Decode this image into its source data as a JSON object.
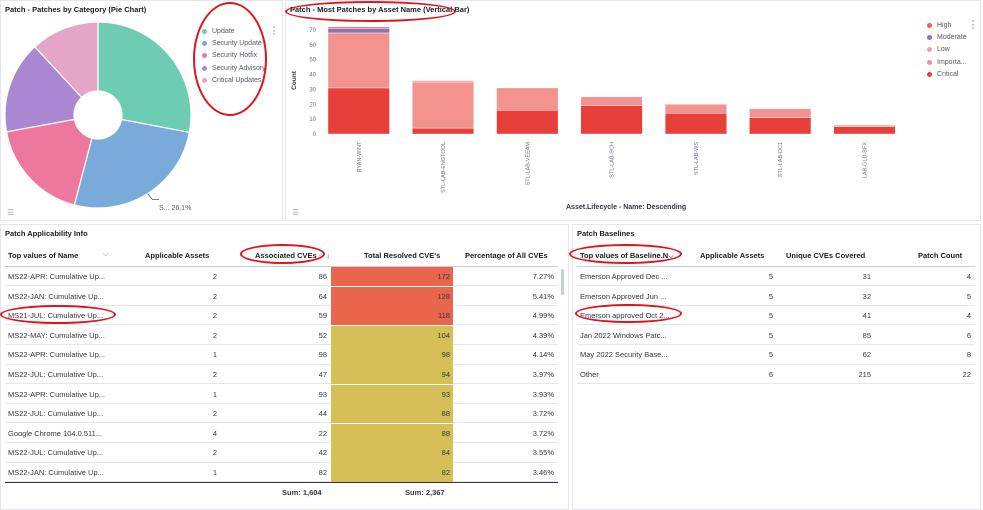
{
  "pie_panel": {
    "title": "Patch - Patches by Category (Pie Chart)",
    "callout": "S... 26.1%",
    "legend": [
      {
        "label": "Update",
        "color": "#6dccb1"
      },
      {
        "label": "Security Update",
        "color": "#79aad9"
      },
      {
        "label": "Security Hotfix",
        "color": "#ee789d"
      },
      {
        "label": "Security Advisory",
        "color": "#a987d1"
      },
      {
        "label": "Critical Updates",
        "color": "#e4a6c7"
      }
    ]
  },
  "bar_panel": {
    "title": "Patch - Most Patches by Asset Name (Vertical Bar)",
    "legend": [
      {
        "label": "High",
        "color": "#e7664c"
      },
      {
        "label": "Moderate",
        "color": "#9170b8"
      },
      {
        "label": "Low",
        "color": "#f5a0a0"
      },
      {
        "label": "Importa...",
        "color": "#f3938f"
      },
      {
        "label": "Critical",
        "color": "#e7403a"
      }
    ]
  },
  "chart_data": [
    {
      "type": "pie",
      "title": "Patch - Patches by Category (Pie Chart)",
      "donut": true,
      "categories": [
        "Update",
        "Security Update",
        "Security Hotfix",
        "Security Advisory",
        "Critical Updates"
      ],
      "values": [
        28,
        26.1,
        18,
        16,
        11.9
      ],
      "colors": [
        "#6dccb1",
        "#79aad9",
        "#ee789d",
        "#a987d1",
        "#e4a6c7"
      ],
      "legend_position": "right"
    },
    {
      "type": "bar",
      "title": "Patch - Most Patches by Asset Name (Vertical Bar)",
      "stacked": true,
      "categories": [
        "RYAN-WIN7",
        "STL-LAB-ENGTOOL",
        "STL-LAB-VEEAM",
        "STL-LAB-SCH",
        "STL-LAB-WS",
        "STL-LAB-DC1",
        "LAB-GLD-BFX"
      ],
      "series": [
        {
          "name": "Critical",
          "color": "#e7403a",
          "values": [
            31,
            4,
            16,
            19,
            14,
            11,
            5
          ]
        },
        {
          "name": "Importa...",
          "color": "#f3938f",
          "values": [
            37,
            31,
            15,
            6,
            6,
            6,
            1
          ]
        },
        {
          "name": "Low",
          "color": "#f5a0a0",
          "values": [
            0,
            1,
            0,
            0,
            0,
            0,
            0
          ]
        },
        {
          "name": "Moderate",
          "color": "#9170b8",
          "values": [
            3,
            0,
            0,
            0,
            0,
            0,
            0
          ]
        },
        {
          "name": "High",
          "color": "#e7664c",
          "values": [
            1,
            0,
            0,
            0,
            0,
            0,
            0
          ]
        }
      ],
      "ylabel": "Count",
      "xlabel": "Asset.Lifecycle - Name: Descending",
      "yticks": [
        0,
        10,
        20,
        30,
        40,
        50,
        60,
        70
      ],
      "ylim": [
        0,
        72
      ],
      "legend_position": "top-right",
      "grid": false
    }
  ],
  "applicability": {
    "title": "Patch Applicability Info",
    "headers": {
      "name": "Top values of Name",
      "assets": "Applicable Assets",
      "cves": "Associated CVEs",
      "resolved": "Total Resolved CVE's",
      "pct": "Percentage of All CVEs"
    },
    "rows": [
      {
        "name": "MS22-APR: Cumulative Up...",
        "assets": "2",
        "cves": "86",
        "resolved": "172",
        "pct": "7.27%",
        "heat": "#e7664c"
      },
      {
        "name": "MS22-JAN: Cumulative Up...",
        "assets": "2",
        "cves": "64",
        "resolved": "128",
        "pct": "5.41%",
        "heat": "#e7664c"
      },
      {
        "name": "MS21-JUL: Cumulative Up...",
        "assets": "2",
        "cves": "59",
        "resolved": "118",
        "pct": "4.99%",
        "heat": "#e7664c"
      },
      {
        "name": "MS22-MAY: Cumulative Up...",
        "assets": "2",
        "cves": "52",
        "resolved": "104",
        "pct": "4.39%",
        "heat": "#d6bf57"
      },
      {
        "name": "MS22-APR: Cumulative Up...",
        "assets": "1",
        "cves": "98",
        "resolved": "98",
        "pct": "4.14%",
        "heat": "#d6bf57"
      },
      {
        "name": "MS22-JUL: Cumulative Up...",
        "assets": "2",
        "cves": "47",
        "resolved": "94",
        "pct": "3.97%",
        "heat": "#d6bf57"
      },
      {
        "name": "MS22-APR: Cumulative Up...",
        "assets": "1",
        "cves": "93",
        "resolved": "93",
        "pct": "3.93%",
        "heat": "#d6bf57"
      },
      {
        "name": "MS22-JUL: Cumulative Up...",
        "assets": "2",
        "cves": "44",
        "resolved": "88",
        "pct": "3.72%",
        "heat": "#d6bf57"
      },
      {
        "name": "Google Chrome 104.0.511...",
        "assets": "4",
        "cves": "22",
        "resolved": "88",
        "pct": "3.72%",
        "heat": "#d6bf57"
      },
      {
        "name": "MS22-JUL: Cumulative Up...",
        "assets": "2",
        "cves": "42",
        "resolved": "84",
        "pct": "3.55%",
        "heat": "#d6bf57"
      },
      {
        "name": "MS22-JAN: Cumulative Up...",
        "assets": "1",
        "cves": "82",
        "resolved": "82",
        "pct": "3.46%",
        "heat": "#d6bf57"
      }
    ],
    "sum_cves": "Sum: 1,604",
    "sum_resolved": "Sum: 2,367"
  },
  "baselines": {
    "title": "Patch Baselines",
    "headers": {
      "name": "Top values of Baseline.N",
      "assets": "Applicable Assets",
      "unique": "Unique CVEs Covered",
      "count": "Patch Count"
    },
    "rows": [
      {
        "name": "Emerson Approved Dec ...",
        "assets": "5",
        "unique": "31",
        "count": "4"
      },
      {
        "name": "Emerson Approved Jun ...",
        "assets": "5",
        "unique": "32",
        "count": "5"
      },
      {
        "name": "Emerson approved Oct 2...",
        "assets": "5",
        "unique": "41",
        "count": "4"
      },
      {
        "name": "Jan 2022 Windows Patc...",
        "assets": "5",
        "unique": "85",
        "count": "6"
      },
      {
        "name": "May 2022 Security Base...",
        "assets": "5",
        "unique": "62",
        "count": "8"
      },
      {
        "name": "Other",
        "assets": "6",
        "unique": "215",
        "count": "22"
      }
    ]
  }
}
